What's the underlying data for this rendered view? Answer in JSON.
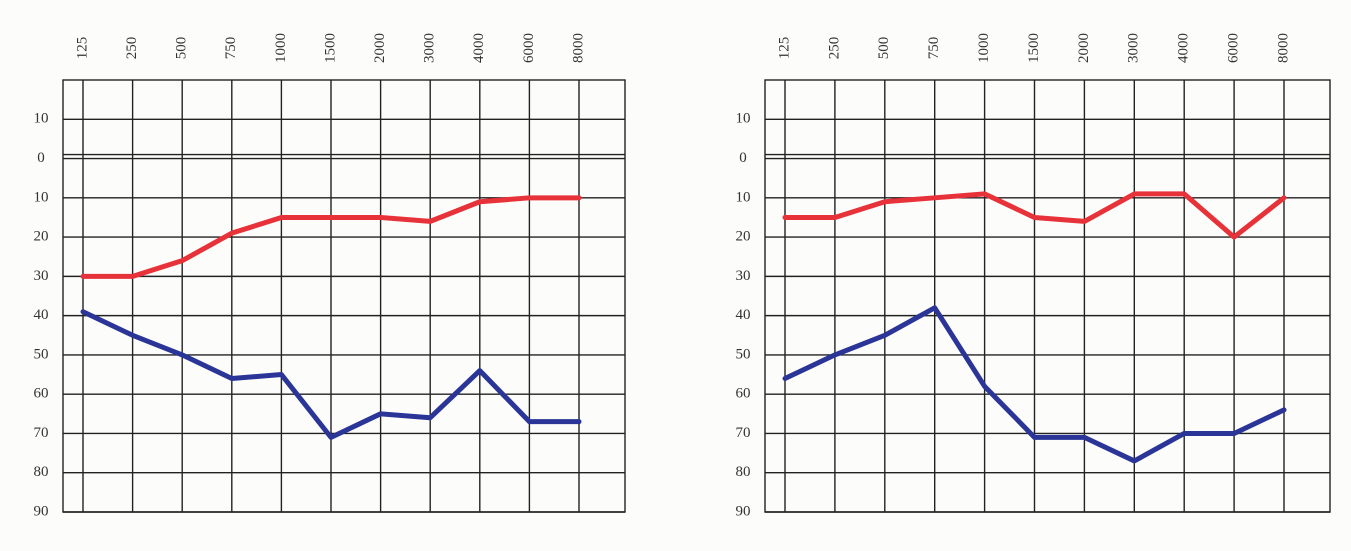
{
  "chart_data": [
    {
      "type": "line",
      "categories": [
        "125",
        "250",
        "500",
        "750",
        "1000",
        "1500",
        "2000",
        "3000",
        "4000",
        "6000",
        "8000"
      ],
      "series": [
        {
          "color": "#e8323a",
          "values": [
            30,
            30,
            26,
            19,
            15,
            15,
            15,
            16,
            11,
            10,
            10
          ]
        },
        {
          "color": "#2b3597",
          "values": [
            39,
            45,
            50,
            56,
            55,
            71,
            65,
            66,
            54,
            67,
            67
          ]
        }
      ],
      "ylim": [
        -20,
        90
      ],
      "y_inverted": true,
      "yticks": [
        {
          "value": -10,
          "label": "10"
        },
        0,
        10,
        20,
        30,
        40,
        50,
        60,
        70,
        80,
        90
      ],
      "grid": true
    },
    {
      "type": "line",
      "categories": [
        "125",
        "250",
        "500",
        "750",
        "1000",
        "1500",
        "2000",
        "3000",
        "4000",
        "6000",
        "8000"
      ],
      "series": [
        {
          "color": "#e8323a",
          "values": [
            15,
            15,
            11,
            10,
            9,
            15,
            16,
            9,
            9,
            20,
            10
          ]
        },
        {
          "color": "#2b3597",
          "values": [
            56,
            50,
            45,
            38,
            58,
            71,
            71,
            77,
            70,
            70,
            64
          ]
        }
      ],
      "ylim": [
        -20,
        90
      ],
      "y_inverted": true,
      "yticks": [
        {
          "value": -10,
          "label": "10"
        },
        0,
        10,
        20,
        30,
        40,
        50,
        60,
        70,
        80,
        90
      ],
      "grid": true
    }
  ]
}
